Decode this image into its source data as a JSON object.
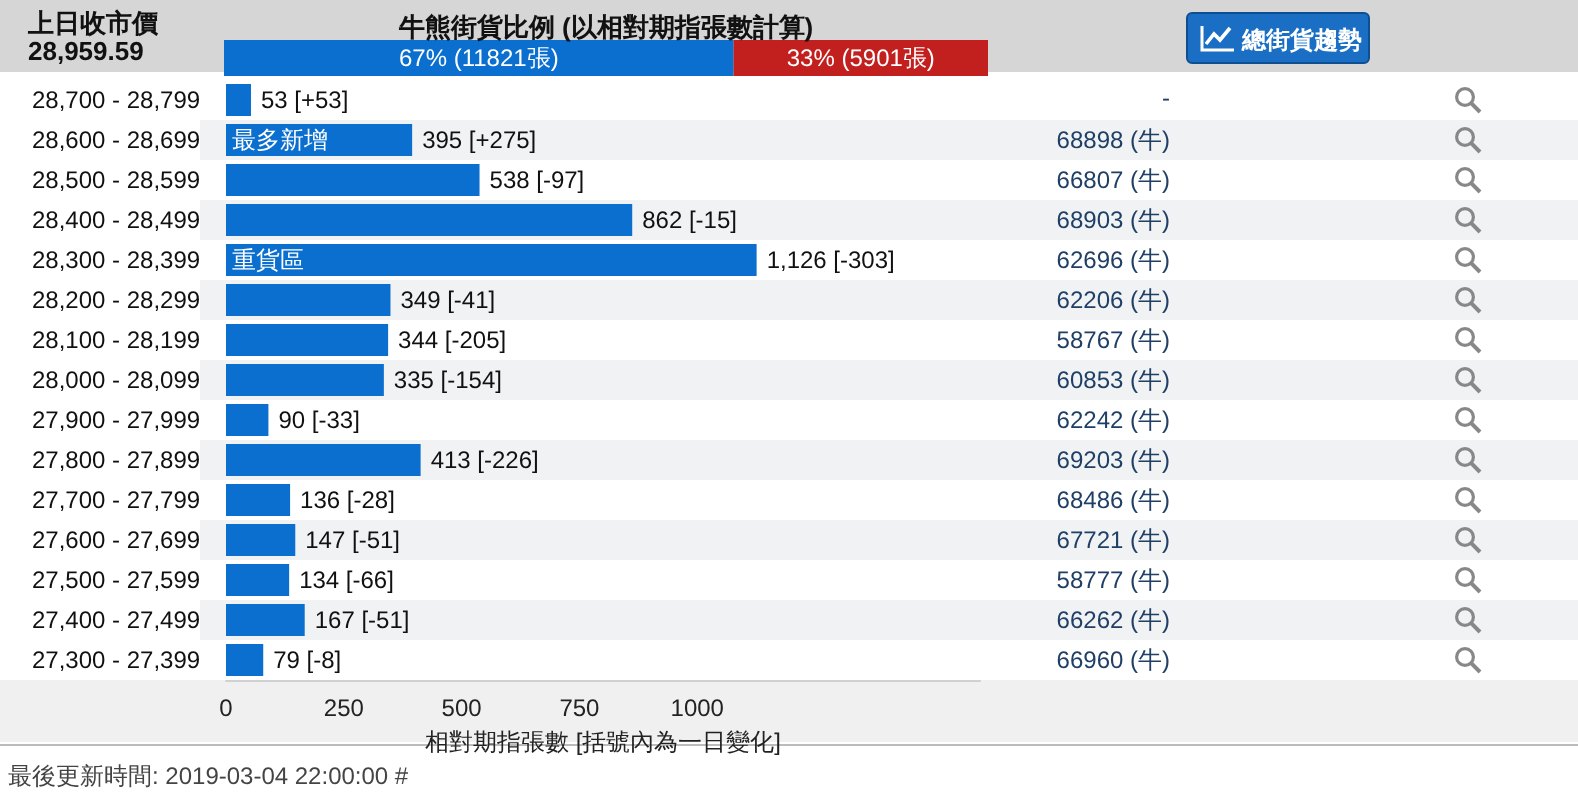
{
  "chart_data": [
    {
      "type": "bar",
      "title": "牛熊街貨比例 (以相對期指張數計算)",
      "orientation": "horizontal",
      "stacked": true,
      "categories": [
        null
      ],
      "tick_labels": false,
      "series": [
        {
          "color": "#0a6fce",
          "values": [
            11821
          ],
          "value_labels": [
            "67% (11821張)"
          ]
        },
        {
          "color": "#c21f1f",
          "values": [
            5901
          ],
          "value_labels": [
            "33% (5901張)"
          ]
        }
      ]
    },
    {
      "type": "bar",
      "orientation": "horizontal",
      "xlabel": "相對期指張數 [括號內為一日變化]",
      "color": "#0a6fce",
      "xlim": [
        0,
        1600
      ],
      "xticks": [
        0,
        250,
        500,
        750,
        {
          "value": 1000,
          "label": "1000"
        }
      ],
      "grid": false,
      "categories": [
        "28,700 - 28,799",
        "28,600 - 28,699",
        "28,500 - 28,599",
        "28,400 - 28,499",
        "28,300 - 28,399",
        "28,200 - 28,299",
        "28,100 - 28,199",
        "28,000 - 28,099",
        "27,900 - 27,999",
        "27,800 - 27,899",
        "27,700 - 27,799",
        "27,600 - 27,699",
        "27,500 - 27,599",
        "27,400 - 27,499",
        "27,300 - 27,399"
      ],
      "values": [
        53,
        395,
        538,
        862,
        1126,
        349,
        344,
        335,
        90,
        413,
        136,
        147,
        134,
        167,
        79
      ],
      "value_labels": [
        "53 [+53]",
        "395 [+275]",
        "538 [-97]",
        "862 [-15]",
        "1,126 [-303]",
        "349 [-41]",
        "344 [-205]",
        "335 [-154]",
        "90 [-33]",
        "413 [-226]",
        "136 [-28]",
        "147 [-51]",
        "134 [-66]",
        "167 [-51]",
        "79 [-8]"
      ],
      "annotations": [
        "上日收市價",
        "28,959.59",
        "總街貨趨勢",
        "最後更新時間: 2019-03-04 22:00:00 #",
        {
          "text": "最多新增",
          "x": 0,
          "y": "28,600 - 28,699"
        },
        {
          "text": "重貨區",
          "x": 0,
          "y": "28,300 - 28,399"
        },
        "-",
        "68898 (牛)",
        "66807 (牛)",
        "68903 (牛)",
        "62696 (牛)",
        "62206 (牛)",
        "58767 (牛)",
        "60853 (牛)",
        "62242 (牛)",
        "69203 (牛)",
        "68486 (牛)",
        "67721 (牛)",
        "58777 (牛)",
        "66262 (牛)",
        "66960 (牛)"
      ]
    }
  ]
}
